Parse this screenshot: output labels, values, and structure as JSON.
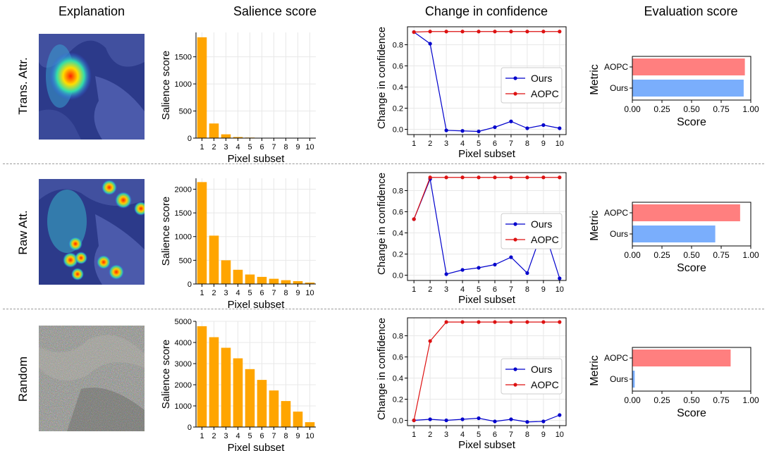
{
  "column_headers": {
    "explanation": "Explanation",
    "salience": "Salience score",
    "confidence": "Change in confidence",
    "evaluation": "Evaluation score"
  },
  "rows": [
    {
      "label": "Trans. Attr.",
      "thumbnail": "attention heatmap overlay"
    },
    {
      "label": "Raw Att.",
      "thumbnail": "attention heatmap overlay"
    },
    {
      "label": "Random",
      "thumbnail": "random noise"
    }
  ],
  "colors": {
    "salience_bar": "#ffa500",
    "ours_line": "#0000cc",
    "aopc_line": "#dd1111",
    "ours_bar": "#7aaefc",
    "aopc_bar": "#ff7f7f",
    "grid": "#e8e8e8"
  },
  "chart_data": [
    {
      "type": "bar",
      "row": 0,
      "panel": "salience",
      "xlabel": "Pixel subset",
      "ylabel": "Salience score",
      "categories": [
        "1",
        "2",
        "3",
        "4",
        "5",
        "6",
        "7",
        "8",
        "9",
        "10"
      ],
      "values": [
        1860,
        270,
        70,
        20,
        10,
        6,
        5,
        4,
        3,
        2
      ],
      "ylim": [
        0,
        1950
      ],
      "yticks": [
        0,
        500,
        1000,
        1500
      ],
      "grid": true
    },
    {
      "type": "line",
      "row": 0,
      "panel": "confidence",
      "xlabel": "Pixel subset",
      "ylabel": "Change in confidence",
      "x": [
        1,
        2,
        3,
        4,
        5,
        6,
        7,
        8,
        9,
        10
      ],
      "xlim": [
        0.6,
        10.4
      ],
      "ylim": [
        -0.05,
        0.97
      ],
      "yticks": [
        0.0,
        0.2,
        0.4,
        0.6,
        0.8
      ],
      "grid": true,
      "legend": "center-right",
      "series": [
        {
          "name": "Ours",
          "values": [
            0.92,
            0.81,
            -0.01,
            -0.015,
            -0.02,
            0.02,
            0.075,
            0.01,
            0.04,
            0.01
          ]
        },
        {
          "name": "AOPC",
          "values": [
            0.92,
            0.925,
            0.925,
            0.925,
            0.925,
            0.925,
            0.925,
            0.925,
            0.925,
            0.925
          ]
        }
      ]
    },
    {
      "type": "bar",
      "orientation": "horizontal",
      "row": 0,
      "panel": "evaluation",
      "xlabel": "Score",
      "ylabel": "Metric",
      "categories": [
        "AOPC",
        "Ours"
      ],
      "values": [
        0.95,
        0.94
      ],
      "xlim": [
        0,
        1
      ],
      "xticks": [
        "0.00",
        "0.25",
        "0.50",
        "0.75",
        "1.00"
      ]
    },
    {
      "type": "bar",
      "row": 1,
      "panel": "salience",
      "xlabel": "Pixel subset",
      "ylabel": "Salience score",
      "categories": [
        "1",
        "2",
        "3",
        "4",
        "5",
        "6",
        "7",
        "8",
        "9",
        "10"
      ],
      "values": [
        2150,
        1020,
        500,
        300,
        200,
        150,
        110,
        80,
        60,
        30
      ],
      "ylim": [
        0,
        2230
      ],
      "yticks": [
        0,
        500,
        1000,
        1500,
        2000
      ],
      "grid": true
    },
    {
      "type": "line",
      "row": 1,
      "panel": "confidence",
      "xlabel": "Pixel subset",
      "ylabel": "Change in confidence",
      "x": [
        1,
        2,
        3,
        4,
        5,
        6,
        7,
        8,
        9,
        10
      ],
      "xlim": [
        0.6,
        10.4
      ],
      "ylim": [
        -0.05,
        0.97
      ],
      "yticks": [
        0.0,
        0.2,
        0.4,
        0.6,
        0.8
      ],
      "grid": true,
      "legend": "center-right",
      "series": [
        {
          "name": "Ours",
          "values": [
            0.53,
            0.91,
            0.01,
            0.05,
            0.07,
            0.1,
            0.17,
            0.02,
            0.45,
            -0.03
          ]
        },
        {
          "name": "AOPC",
          "values": [
            0.53,
            0.925,
            0.925,
            0.925,
            0.925,
            0.925,
            0.925,
            0.925,
            0.925,
            0.925
          ]
        }
      ]
    },
    {
      "type": "bar",
      "orientation": "horizontal",
      "row": 1,
      "panel": "evaluation",
      "xlabel": "Score",
      "ylabel": "Metric",
      "categories": [
        "AOPC",
        "Ours"
      ],
      "values": [
        0.91,
        0.7
      ],
      "xlim": [
        0,
        1
      ],
      "xticks": [
        "0.00",
        "0.25",
        "0.50",
        "0.75",
        "1.00"
      ]
    },
    {
      "type": "bar",
      "row": 2,
      "panel": "salience",
      "xlabel": "Pixel subset",
      "ylabel": "Salience score",
      "categories": [
        "1",
        "2",
        "3",
        "4",
        "5",
        "6",
        "7",
        "8",
        "9",
        "10"
      ],
      "values": [
        4770,
        4250,
        3750,
        3250,
        2740,
        2230,
        1730,
        1230,
        730,
        230
      ],
      "ylim": [
        0,
        5000
      ],
      "yticks": [
        0,
        1000,
        2000,
        3000,
        4000,
        5000
      ],
      "grid": true
    },
    {
      "type": "line",
      "row": 2,
      "panel": "confidence",
      "xlabel": "Pixel subset",
      "ylabel": "Change in confidence",
      "x": [
        1,
        2,
        3,
        4,
        5,
        6,
        7,
        8,
        9,
        10
      ],
      "xlim": [
        0.6,
        10.4
      ],
      "ylim": [
        -0.05,
        0.97
      ],
      "yticks": [
        0.0,
        0.2,
        0.4,
        0.6,
        0.8
      ],
      "grid": true,
      "legend": "center-right",
      "series": [
        {
          "name": "Ours",
          "values": [
            0.0,
            0.01,
            0.0,
            0.01,
            0.02,
            -0.01,
            0.01,
            -0.015,
            -0.01,
            0.05
          ]
        },
        {
          "name": "AOPC",
          "values": [
            0.0,
            0.75,
            0.93,
            0.93,
            0.93,
            0.93,
            0.93,
            0.93,
            0.93,
            0.93
          ]
        }
      ]
    },
    {
      "type": "bar",
      "orientation": "horizontal",
      "row": 2,
      "panel": "evaluation",
      "xlabel": "Score",
      "ylabel": "Metric",
      "categories": [
        "AOPC",
        "Ours"
      ],
      "values": [
        0.83,
        0.02
      ],
      "xlim": [
        0,
        1
      ],
      "xticks": [
        "0.00",
        "0.25",
        "0.50",
        "0.75",
        "1.00"
      ]
    }
  ]
}
